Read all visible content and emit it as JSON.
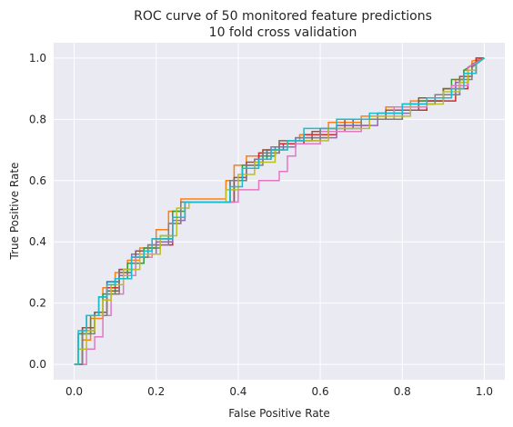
{
  "chart_data": {
    "type": "line",
    "title": "ROC curve of 50 monitored feature predictions",
    "subtitle": "10 fold cross validation",
    "xlabel": "False Positive Rate",
    "ylabel": "True Positive Rate",
    "xlim": [
      -0.05,
      1.05
    ],
    "ylim": [
      -0.05,
      1.05
    ],
    "xticks": [
      0.0,
      0.2,
      0.4,
      0.6,
      0.8,
      1.0
    ],
    "yticks": [
      0.0,
      0.2,
      0.4,
      0.6,
      0.8,
      1.0
    ],
    "xtick_labels": [
      "0.0",
      "0.2",
      "0.4",
      "0.6",
      "0.8",
      "1.0"
    ],
    "ytick_labels": [
      "0.0",
      "0.2",
      "0.4",
      "0.6",
      "0.8",
      "1.0"
    ],
    "grid": true,
    "background_color": "#eaeaf2",
    "series": [
      {
        "color": "#1f77b4",
        "x": [
          0,
          0.01,
          0.01,
          0.03,
          0.03,
          0.06,
          0.06,
          0.08,
          0.08,
          0.11,
          0.11,
          0.14,
          0.14,
          0.17,
          0.17,
          0.2,
          0.2,
          0.24,
          0.24,
          0.27,
          0.27,
          0.38,
          0.38,
          0.41,
          0.41,
          0.44,
          0.44,
          0.47,
          0.47,
          0.51,
          0.51,
          0.56,
          0.56,
          0.6,
          0.6,
          0.68,
          0.68,
          0.74,
          0.74,
          0.8,
          0.8,
          0.84,
          0.84,
          0.9,
          0.9,
          0.94,
          0.94,
          0.96,
          0.96,
          0.98,
          0.98,
          1.0
        ],
        "y": [
          0,
          0,
          0.1,
          0.1,
          0.16,
          0.16,
          0.22,
          0.22,
          0.27,
          0.27,
          0.31,
          0.31,
          0.35,
          0.35,
          0.38,
          0.38,
          0.41,
          0.41,
          0.48,
          0.48,
          0.53,
          0.53,
          0.6,
          0.6,
          0.64,
          0.64,
          0.67,
          0.67,
          0.7,
          0.7,
          0.72,
          0.72,
          0.75,
          0.75,
          0.77,
          0.77,
          0.8,
          0.8,
          0.82,
          0.82,
          0.84,
          0.84,
          0.86,
          0.86,
          0.88,
          0.88,
          0.91,
          0.91,
          0.95,
          0.95,
          0.99,
          1.0
        ]
      },
      {
        "color": "#ff7f0e",
        "x": [
          0,
          0.02,
          0.02,
          0.04,
          0.04,
          0.07,
          0.07,
          0.1,
          0.1,
          0.13,
          0.13,
          0.16,
          0.16,
          0.2,
          0.2,
          0.23,
          0.23,
          0.26,
          0.26,
          0.37,
          0.37,
          0.39,
          0.39,
          0.42,
          0.42,
          0.46,
          0.46,
          0.5,
          0.5,
          0.55,
          0.55,
          0.62,
          0.62,
          0.7,
          0.7,
          0.76,
          0.76,
          0.82,
          0.82,
          0.86,
          0.86,
          0.9,
          0.9,
          0.93,
          0.93,
          0.95,
          0.95,
          0.97,
          0.97,
          1.0
        ],
        "y": [
          0,
          0,
          0.08,
          0.08,
          0.15,
          0.15,
          0.25,
          0.25,
          0.3,
          0.3,
          0.34,
          0.34,
          0.38,
          0.38,
          0.44,
          0.44,
          0.5,
          0.5,
          0.54,
          0.54,
          0.6,
          0.6,
          0.65,
          0.65,
          0.68,
          0.68,
          0.7,
          0.7,
          0.73,
          0.73,
          0.75,
          0.75,
          0.79,
          0.79,
          0.81,
          0.81,
          0.84,
          0.84,
          0.86,
          0.86,
          0.87,
          0.87,
          0.9,
          0.9,
          0.93,
          0.93,
          0.96,
          0.96,
          0.99,
          1.0
        ]
      },
      {
        "color": "#2ca02c",
        "x": [
          0,
          0.01,
          0.01,
          0.04,
          0.04,
          0.07,
          0.07,
          0.1,
          0.1,
          0.13,
          0.13,
          0.17,
          0.17,
          0.21,
          0.21,
          0.24,
          0.24,
          0.27,
          0.27,
          0.38,
          0.38,
          0.41,
          0.41,
          0.45,
          0.45,
          0.49,
          0.49,
          0.54,
          0.54,
          0.62,
          0.62,
          0.7,
          0.7,
          0.78,
          0.78,
          0.84,
          0.84,
          0.9,
          0.9,
          0.92,
          0.92,
          0.95,
          0.95,
          1.0
        ],
        "y": [
          0,
          0,
          0.1,
          0.1,
          0.16,
          0.16,
          0.23,
          0.23,
          0.28,
          0.28,
          0.33,
          0.33,
          0.38,
          0.38,
          0.42,
          0.42,
          0.5,
          0.5,
          0.53,
          0.53,
          0.6,
          0.6,
          0.65,
          0.65,
          0.68,
          0.68,
          0.71,
          0.71,
          0.74,
          0.74,
          0.77,
          0.77,
          0.8,
          0.8,
          0.83,
          0.83,
          0.86,
          0.86,
          0.9,
          0.9,
          0.93,
          0.93,
          0.96,
          1.0
        ]
      },
      {
        "color": "#d62728",
        "x": [
          0,
          0.02,
          0.02,
          0.05,
          0.05,
          0.08,
          0.08,
          0.11,
          0.11,
          0.14,
          0.14,
          0.18,
          0.18,
          0.24,
          0.24,
          0.27,
          0.27,
          0.39,
          0.39,
          0.42,
          0.42,
          0.45,
          0.45,
          0.5,
          0.5,
          0.56,
          0.56,
          0.64,
          0.64,
          0.72,
          0.72,
          0.8,
          0.8,
          0.86,
          0.86,
          0.93,
          0.93,
          0.96,
          0.96,
          0.98,
          0.98,
          1.0
        ],
        "y": [
          0,
          0,
          0.12,
          0.12,
          0.17,
          0.17,
          0.25,
          0.25,
          0.3,
          0.3,
          0.35,
          0.35,
          0.39,
          0.39,
          0.48,
          0.48,
          0.53,
          0.53,
          0.6,
          0.6,
          0.65,
          0.65,
          0.69,
          0.69,
          0.72,
          0.72,
          0.75,
          0.75,
          0.78,
          0.78,
          0.8,
          0.8,
          0.83,
          0.83,
          0.86,
          0.86,
          0.9,
          0.9,
          0.95,
          0.95,
          1.0,
          1.0
        ]
      },
      {
        "color": "#9467bd",
        "x": [
          0,
          0.02,
          0.02,
          0.05,
          0.05,
          0.08,
          0.08,
          0.11,
          0.11,
          0.14,
          0.14,
          0.2,
          0.2,
          0.24,
          0.24,
          0.27,
          0.27,
          0.38,
          0.38,
          0.41,
          0.41,
          0.44,
          0.44,
          0.48,
          0.48,
          0.54,
          0.54,
          0.64,
          0.64,
          0.74,
          0.74,
          0.82,
          0.82,
          0.88,
          0.88,
          0.93,
          0.93,
          0.96,
          0.96,
          1.0
        ],
        "y": [
          0,
          0,
          0.11,
          0.11,
          0.16,
          0.16,
          0.24,
          0.24,
          0.29,
          0.29,
          0.36,
          0.36,
          0.4,
          0.4,
          0.47,
          0.47,
          0.53,
          0.53,
          0.6,
          0.6,
          0.64,
          0.64,
          0.67,
          0.67,
          0.71,
          0.71,
          0.74,
          0.74,
          0.78,
          0.78,
          0.82,
          0.82,
          0.85,
          0.85,
          0.88,
          0.88,
          0.92,
          0.92,
          0.97,
          1.0
        ]
      },
      {
        "color": "#8c564b",
        "x": [
          0,
          0.02,
          0.02,
          0.05,
          0.05,
          0.08,
          0.08,
          0.11,
          0.11,
          0.15,
          0.15,
          0.19,
          0.19,
          0.24,
          0.24,
          0.27,
          0.27,
          0.39,
          0.39,
          0.42,
          0.42,
          0.46,
          0.46,
          0.5,
          0.5,
          0.58,
          0.58,
          0.66,
          0.66,
          0.76,
          0.76,
          0.84,
          0.84,
          0.9,
          0.9,
          0.94,
          0.94,
          0.97,
          0.97,
          1.0
        ],
        "y": [
          0,
          0,
          0.12,
          0.12,
          0.17,
          0.17,
          0.24,
          0.24,
          0.31,
          0.31,
          0.37,
          0.37,
          0.41,
          0.41,
          0.48,
          0.48,
          0.53,
          0.53,
          0.61,
          0.61,
          0.66,
          0.66,
          0.7,
          0.7,
          0.73,
          0.73,
          0.76,
          0.76,
          0.8,
          0.8,
          0.83,
          0.83,
          0.87,
          0.87,
          0.9,
          0.9,
          0.94,
          0.94,
          0.98,
          1.0
        ]
      },
      {
        "color": "#e377c2",
        "x": [
          0,
          0.03,
          0.03,
          0.05,
          0.05,
          0.07,
          0.07,
          0.09,
          0.09,
          0.12,
          0.12,
          0.15,
          0.15,
          0.19,
          0.19,
          0.23,
          0.23,
          0.26,
          0.26,
          0.4,
          0.4,
          0.45,
          0.45,
          0.5,
          0.5,
          0.52,
          0.52,
          0.54,
          0.54,
          0.6,
          0.6,
          0.7,
          0.7,
          0.78,
          0.78,
          0.86,
          0.86,
          0.92,
          0.92,
          0.96,
          0.96,
          1.0
        ],
        "y": [
          0,
          0,
          0.05,
          0.05,
          0.09,
          0.09,
          0.16,
          0.16,
          0.23,
          0.23,
          0.29,
          0.29,
          0.35,
          0.35,
          0.39,
          0.39,
          0.46,
          0.46,
          0.53,
          0.53,
          0.57,
          0.57,
          0.6,
          0.6,
          0.63,
          0.63,
          0.68,
          0.68,
          0.72,
          0.72,
          0.76,
          0.76,
          0.8,
          0.8,
          0.84,
          0.84,
          0.87,
          0.87,
          0.91,
          0.91,
          0.97,
          1.0
        ]
      },
      {
        "color": "#7f7f7f",
        "x": [
          0,
          0.02,
          0.02,
          0.05,
          0.05,
          0.08,
          0.08,
          0.11,
          0.11,
          0.14,
          0.14,
          0.18,
          0.18,
          0.23,
          0.23,
          0.26,
          0.26,
          0.38,
          0.38,
          0.42,
          0.42,
          0.46,
          0.46,
          0.5,
          0.5,
          0.6,
          0.6,
          0.7,
          0.7,
          0.8,
          0.8,
          0.88,
          0.88,
          0.94,
          0.94,
          0.97,
          0.97,
          1.0
        ],
        "y": [
          0,
          0,
          0.1,
          0.1,
          0.16,
          0.16,
          0.23,
          0.23,
          0.3,
          0.3,
          0.35,
          0.35,
          0.39,
          0.39,
          0.46,
          0.46,
          0.53,
          0.53,
          0.6,
          0.6,
          0.65,
          0.65,
          0.69,
          0.69,
          0.73,
          0.73,
          0.77,
          0.77,
          0.8,
          0.8,
          0.85,
          0.85,
          0.88,
          0.88,
          0.93,
          0.93,
          0.97,
          1.0
        ]
      },
      {
        "color": "#bcbd22",
        "x": [
          0,
          0.01,
          0.01,
          0.03,
          0.03,
          0.05,
          0.05,
          0.07,
          0.07,
          0.09,
          0.09,
          0.12,
          0.12,
          0.16,
          0.16,
          0.21,
          0.21,
          0.25,
          0.25,
          0.28,
          0.28,
          0.37,
          0.37,
          0.4,
          0.4,
          0.44,
          0.44,
          0.49,
          0.49,
          0.52,
          0.52,
          0.62,
          0.62,
          0.72,
          0.72,
          0.82,
          0.82,
          0.9,
          0.9,
          0.94,
          0.94,
          0.96,
          0.96,
          0.98,
          0.98,
          1.0
        ],
        "y": [
          0,
          0,
          0.05,
          0.05,
          0.11,
          0.11,
          0.16,
          0.16,
          0.21,
          0.21,
          0.26,
          0.26,
          0.31,
          0.31,
          0.36,
          0.36,
          0.42,
          0.42,
          0.51,
          0.51,
          0.53,
          0.53,
          0.57,
          0.57,
          0.62,
          0.62,
          0.66,
          0.66,
          0.7,
          0.7,
          0.73,
          0.73,
          0.77,
          0.77,
          0.81,
          0.81,
          0.85,
          0.85,
          0.89,
          0.89,
          0.92,
          0.92,
          0.96,
          0.96,
          0.98,
          1.0
        ]
      },
      {
        "color": "#17becf",
        "x": [
          0,
          0.01,
          0.01,
          0.03,
          0.03,
          0.06,
          0.06,
          0.08,
          0.08,
          0.1,
          0.1,
          0.14,
          0.14,
          0.17,
          0.17,
          0.19,
          0.19,
          0.24,
          0.24,
          0.27,
          0.27,
          0.38,
          0.38,
          0.41,
          0.41,
          0.45,
          0.45,
          0.48,
          0.48,
          0.52,
          0.52,
          0.56,
          0.56,
          0.64,
          0.64,
          0.72,
          0.72,
          0.8,
          0.8,
          0.86,
          0.86,
          0.92,
          0.92,
          0.95,
          0.95,
          0.98,
          0.98,
          1.0
        ],
        "y": [
          0,
          0,
          0.11,
          0.11,
          0.16,
          0.16,
          0.22,
          0.22,
          0.26,
          0.26,
          0.28,
          0.28,
          0.35,
          0.35,
          0.37,
          0.37,
          0.41,
          0.41,
          0.48,
          0.48,
          0.53,
          0.53,
          0.58,
          0.58,
          0.64,
          0.64,
          0.67,
          0.67,
          0.7,
          0.7,
          0.73,
          0.73,
          0.77,
          0.77,
          0.8,
          0.8,
          0.82,
          0.82,
          0.85,
          0.85,
          0.87,
          0.87,
          0.9,
          0.9,
          0.95,
          0.95,
          0.98,
          1.0
        ]
      }
    ]
  }
}
